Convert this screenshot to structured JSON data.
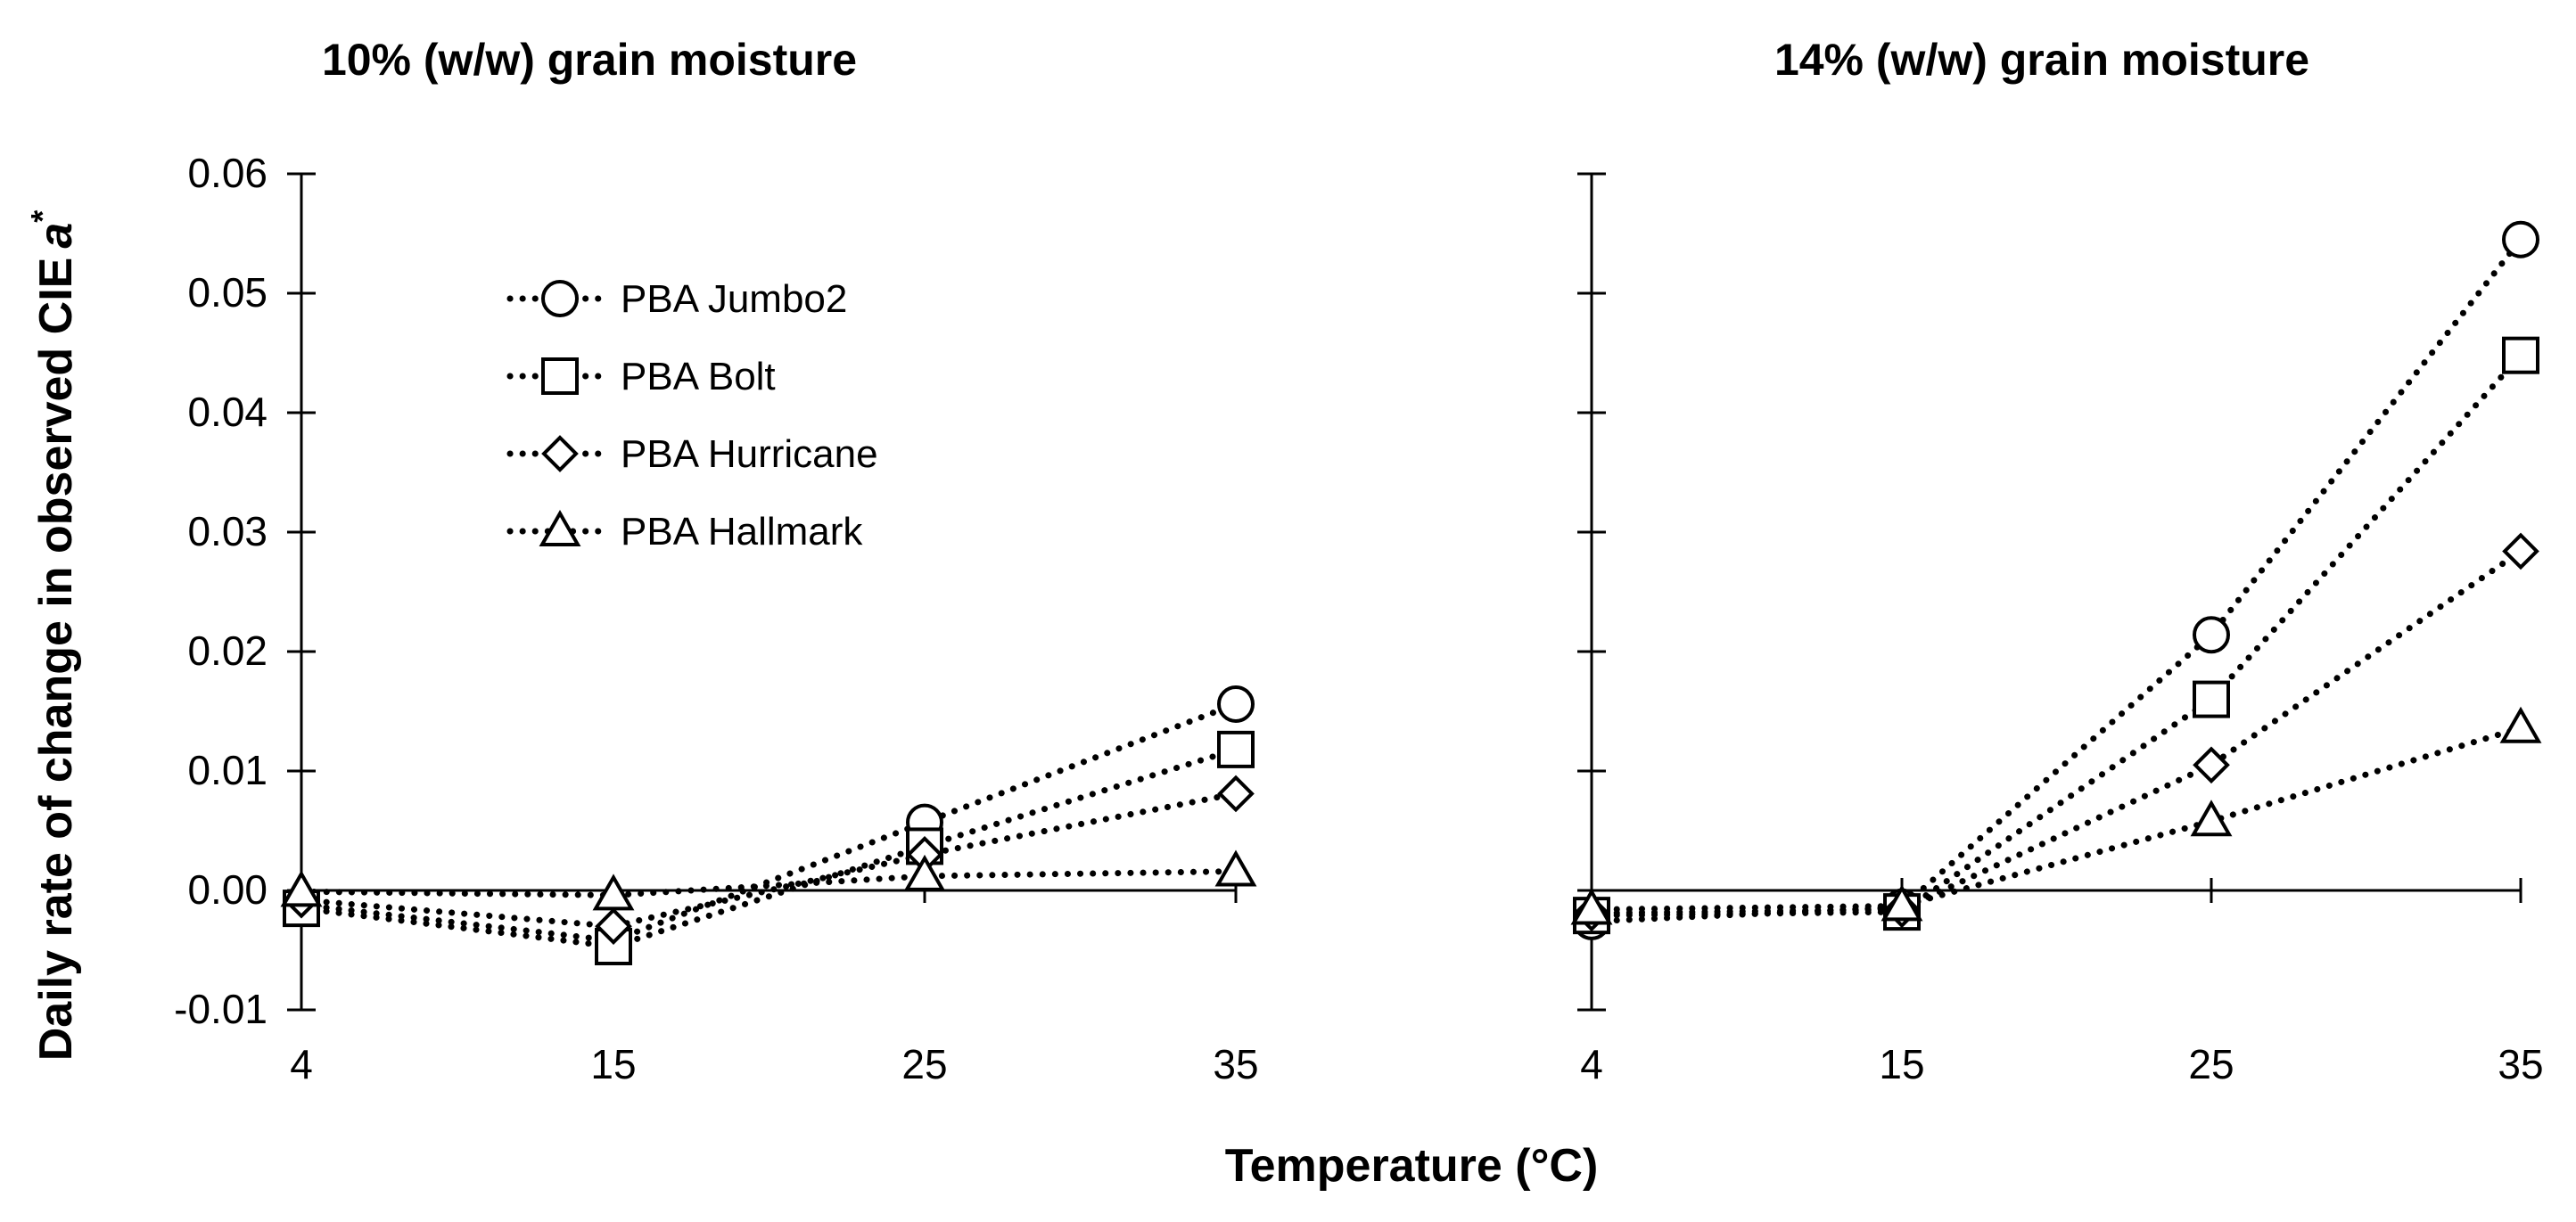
{
  "chart_data": {
    "type": "line",
    "ylabel": "Daily rate of change in observed CIE",
    "ylabel_symbol": "a",
    "ylabel_superscript": "*",
    "xlabel": "Temperature (°C)",
    "ylim": [
      -0.01,
      0.06
    ],
    "yticks": [
      -0.01,
      0.0,
      0.01,
      0.02,
      0.03,
      0.04,
      0.05,
      0.06
    ],
    "ytick_labels": [
      "-0.01",
      "0.00",
      "0.01",
      "0.02",
      "0.03",
      "0.04",
      "0.05",
      "0.06"
    ],
    "x": [
      4,
      15,
      25,
      35
    ],
    "x_labels": [
      "4",
      "15",
      "25",
      "35"
    ],
    "legend": {
      "placement": "upper-left of left panel",
      "entries": [
        "PBA Jumbo2",
        "PBA Bolt",
        "PBA Hurricane",
        "PBA Hallmark"
      ]
    },
    "panels": [
      {
        "title": "10% (w/w) grain moisture",
        "series": [
          {
            "name": "PBA Jumbo2",
            "marker": "circle",
            "values": [
              -0.0012,
              -0.0042,
              0.0057,
              0.0156
            ]
          },
          {
            "name": "PBA Bolt",
            "marker": "square",
            "values": [
              -0.0015,
              -0.0047,
              0.0037,
              0.0118
            ]
          },
          {
            "name": "PBA Hurricane",
            "marker": "diamond",
            "values": [
              -0.0008,
              -0.003,
              0.003,
              0.0081
            ]
          },
          {
            "name": "PBA Hallmark",
            "marker": "triangle",
            "values": [
              -0.0001,
              -0.0004,
              0.0012,
              0.0016
            ]
          }
        ]
      },
      {
        "title": "14% (w/w) grain moisture",
        "series": [
          {
            "name": "PBA Jumbo2",
            "marker": "circle",
            "values": [
              -0.0026,
              -0.0014,
              0.0214,
              0.0545
            ]
          },
          {
            "name": "PBA Bolt",
            "marker": "square",
            "values": [
              -0.0021,
              -0.0018,
              0.016,
              0.0448
            ]
          },
          {
            "name": "PBA Hurricane",
            "marker": "diamond",
            "values": [
              -0.0019,
              -0.0016,
              0.0105,
              0.0284
            ]
          },
          {
            "name": "PBA Hallmark",
            "marker": "triangle",
            "values": [
              -0.0016,
              -0.0013,
              0.0058,
              0.0136
            ]
          }
        ]
      }
    ]
  }
}
